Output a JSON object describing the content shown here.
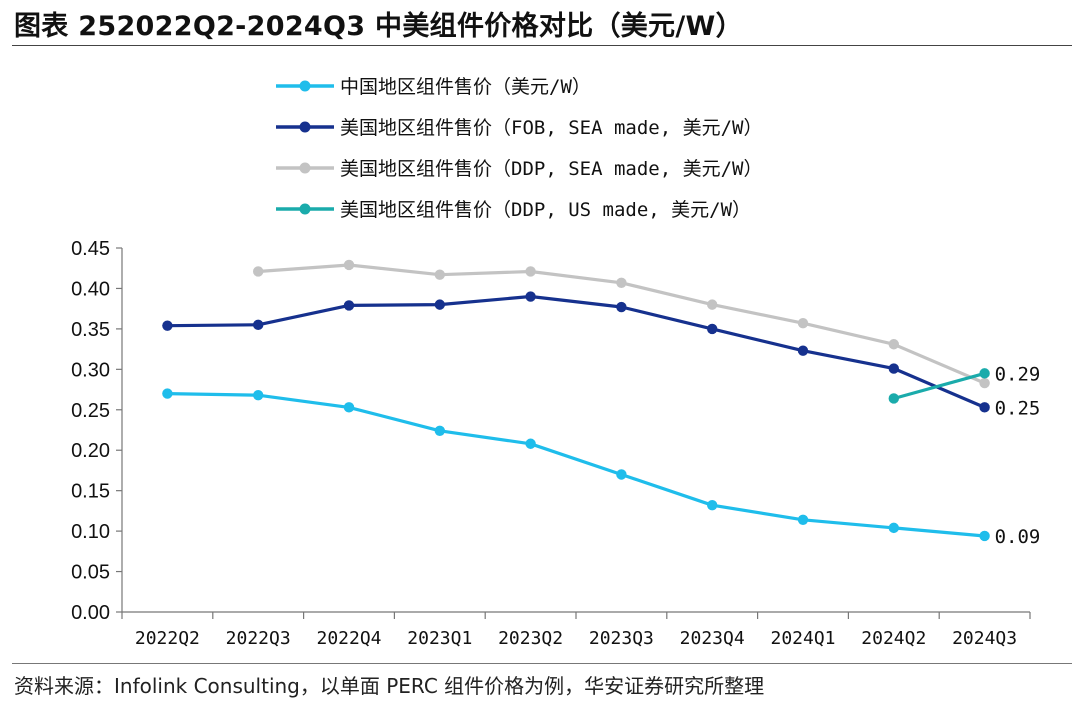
{
  "title": "图表 252022Q2-2024Q3 中美组件价格对比（美元/W）",
  "source": "资料来源：Infolink Consulting，以单面 PERC 组件价格为例，华安证券研究所整理",
  "chart_data": {
    "type": "line",
    "categories": [
      "2022Q2",
      "2022Q3",
      "2022Q4",
      "2023Q1",
      "2023Q2",
      "2023Q3",
      "2023Q4",
      "2024Q1",
      "2024Q2",
      "2024Q3"
    ],
    "ylim": [
      0,
      0.45
    ],
    "yticks": [
      "0.00",
      "0.05",
      "0.10",
      "0.15",
      "0.20",
      "0.25",
      "0.30",
      "0.35",
      "0.40",
      "0.45"
    ],
    "legend_position": "top",
    "series": [
      {
        "name": "中国地区组件售价（美元/W）",
        "color": "#1FBDEB",
        "values": [
          0.27,
          0.268,
          0.253,
          0.224,
          0.208,
          0.17,
          0.132,
          0.114,
          0.104,
          0.094
        ],
        "end_label": "0.09"
      },
      {
        "name": "美国地区组件售价（FOB, SEA made, 美元/W）",
        "color": "#16318E",
        "values": [
          0.354,
          0.355,
          0.379,
          0.38,
          0.39,
          0.377,
          0.35,
          0.323,
          0.301,
          0.253
        ],
        "end_label": "0.25"
      },
      {
        "name": "美国地区组件售价（DDP, SEA made, 美元/W）",
        "color": "#C3C3C3",
        "values": [
          null,
          0.421,
          0.429,
          0.417,
          0.421,
          0.407,
          0.38,
          0.357,
          0.331,
          0.283
        ],
        "end_label": ""
      },
      {
        "name": "美国地区组件售价（DDP, US made, 美元/W）",
        "color": "#1AABAB",
        "values": [
          null,
          null,
          null,
          null,
          null,
          null,
          null,
          null,
          0.264,
          0.295
        ],
        "end_label": "0.29"
      }
    ]
  }
}
